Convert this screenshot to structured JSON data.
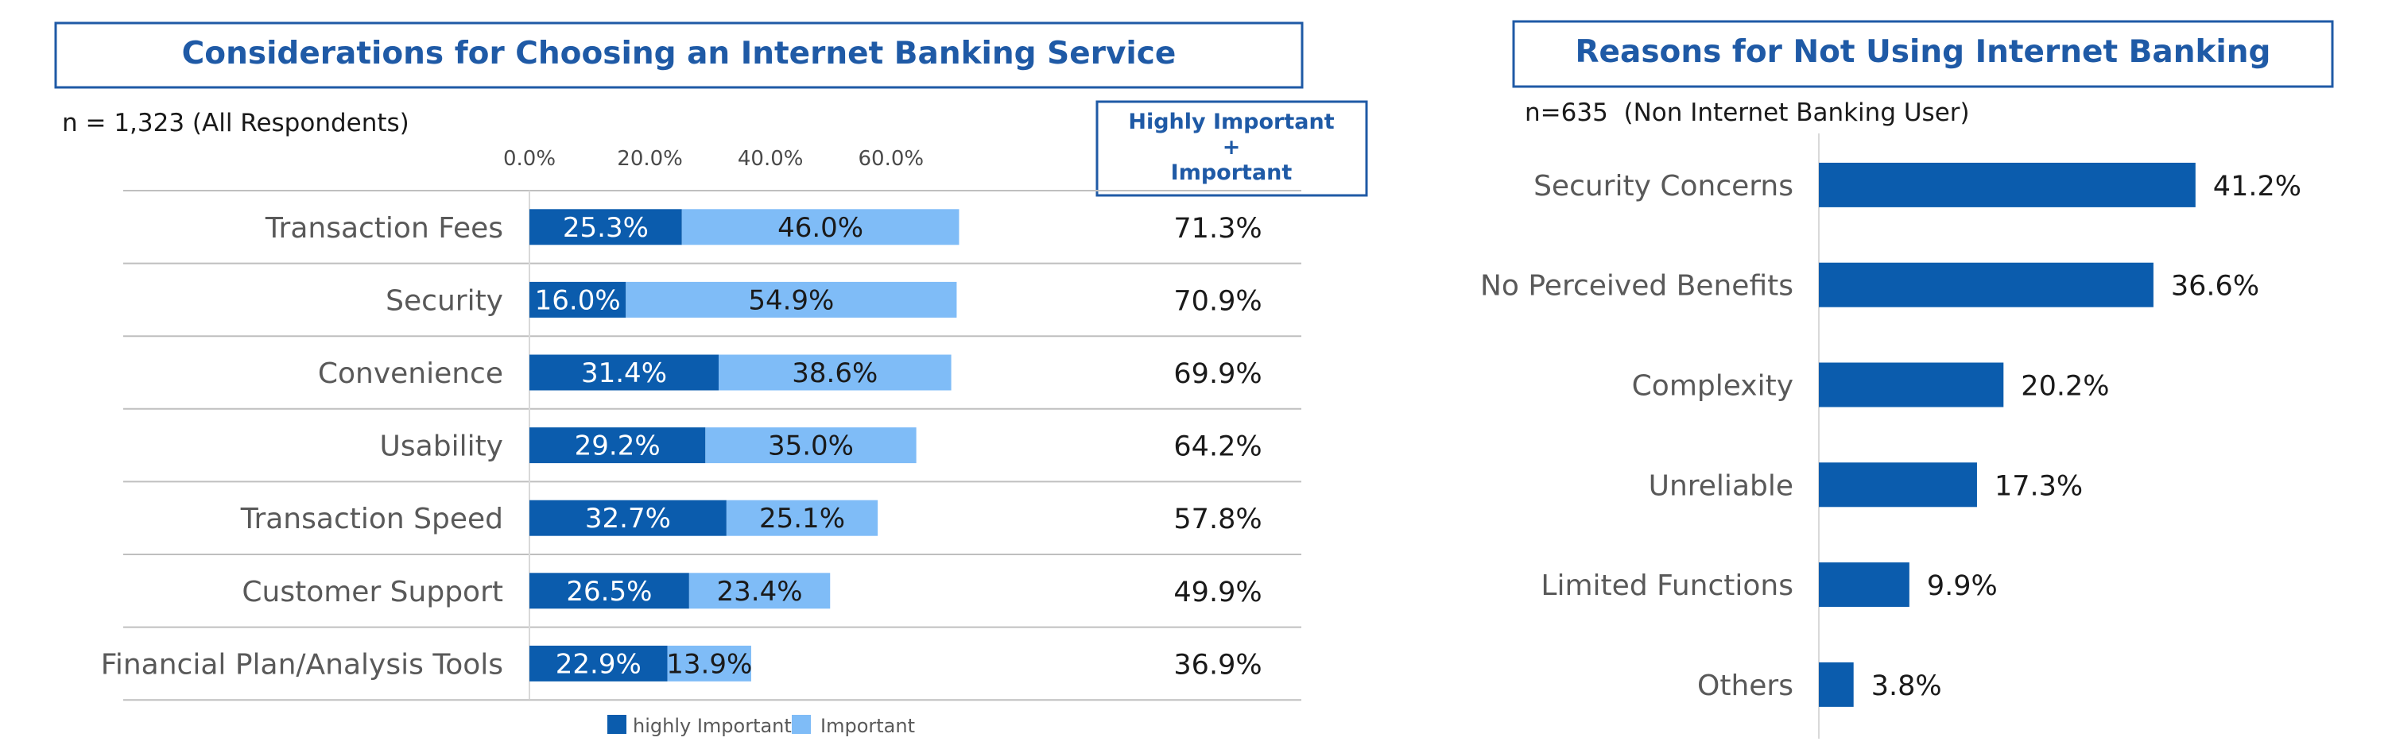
{
  "colors": {
    "highly_important": "#0b5cad",
    "important": "#7fbcf7",
    "title": "#1f5aa6"
  },
  "chart_data": [
    {
      "type": "bar",
      "orientation": "horizontal",
      "stacked": true,
      "title": "Considerations for Choosing an Internet Banking Service",
      "sample_note": "n = 1,323 (All Respondents)",
      "totals_header": [
        "Highly Important",
        "+",
        "Important"
      ],
      "x_ticks": [
        "0.0%",
        "20.0%",
        "40.0%",
        "60.0%"
      ],
      "xlim": [
        0,
        70
      ],
      "grid": true,
      "legend_position": "bottom",
      "categories": [
        "Transaction Fees",
        "Security",
        "Convenience",
        "Usability",
        "Transaction Speed",
        "Customer Support",
        "Financial Plan/Analysis Tools"
      ],
      "series": [
        {
          "name": "highly Important",
          "values": [
            25.3,
            16.0,
            31.4,
            29.2,
            32.7,
            26.5,
            22.9
          ],
          "labels": [
            "25.3%",
            "16.0%",
            "31.4%",
            "29.2%",
            "32.7%",
            "26.5%",
            "22.9%"
          ]
        },
        {
          "name": "Important",
          "values": [
            46.0,
            54.9,
            38.6,
            35.0,
            25.1,
            23.4,
            13.9
          ],
          "labels": [
            "46.0%",
            "54.9%",
            "38.6%",
            "35.0%",
            "25.1%",
            "23.4%",
            "13.9%"
          ]
        }
      ],
      "totals": [
        "71.3%",
        "70.9%",
        "69.9%",
        "64.2%",
        "57.8%",
        "49.9%",
        "36.9%"
      ]
    },
    {
      "type": "bar",
      "orientation": "horizontal",
      "title": "Reasons for Not Using Internet Banking",
      "sample_note": "n=635  (Non Internet Banking User)",
      "xlim": [
        0,
        45
      ],
      "grid": false,
      "categories": [
        "Security Concerns",
        "No Perceived Benefits",
        "Complexity",
        "Unreliable",
        "Limited Functions",
        "Others"
      ],
      "values": [
        41.2,
        36.6,
        20.2,
        17.3,
        9.9,
        3.8
      ],
      "labels": [
        "41.2%",
        "36.6%",
        "20.2%",
        "17.3%",
        "9.9%",
        "3.8%"
      ]
    }
  ]
}
